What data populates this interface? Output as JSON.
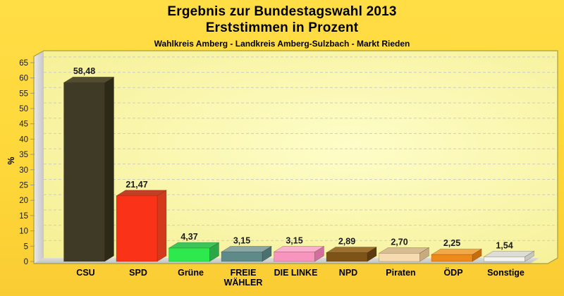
{
  "page": {
    "background_top": "#FFDD45",
    "background_bottom": "#F9CC33"
  },
  "header": {
    "title_line1": "Ergebnis zur Bundestagswahl 2013",
    "title_line2": "Erststimmen in Prozent",
    "subtitle": "Wahlkreis Amberg - Landkreis Amberg-Sulzbach - Markt Rieden"
  },
  "chart_data": {
    "type": "bar",
    "style": "3d-column",
    "title": "Ergebnis zur Bundestagswahl 2013",
    "subtitle2": "Erststimmen in Prozent",
    "subtitle3": "Wahlkreis Amberg - Landkreis Amberg-Sulzbach - Markt Rieden",
    "ylabel": "%",
    "ylim": [
      0,
      65
    ],
    "yticks": [
      0,
      5,
      10,
      15,
      20,
      25,
      30,
      35,
      40,
      45,
      50,
      55,
      60,
      65
    ],
    "grid": "dashed-horizontal",
    "legend": "none",
    "categories": [
      "CSU",
      "SPD",
      "Grüne",
      "FREIE WÄHLER",
      "DIE LINKE",
      "NPD",
      "Piraten",
      "ÖDP",
      "Sonstige"
    ],
    "category_lines": [
      [
        "CSU"
      ],
      [
        "SPD"
      ],
      [
        "Grüne"
      ],
      [
        "FREIE",
        "WÄHLER"
      ],
      [
        "DIE LINKE"
      ],
      [
        "NPD"
      ],
      [
        "Piraten"
      ],
      [
        "ÖDP"
      ],
      [
        "Sonstige"
      ]
    ],
    "values": [
      58.48,
      21.47,
      4.37,
      3.15,
      3.15,
      2.89,
      2.7,
      2.25,
      1.54
    ],
    "value_labels": [
      "58,48",
      "21,47",
      "4,37",
      "3,15",
      "3,15",
      "2,89",
      "2,70",
      "2,25",
      "1,54"
    ],
    "bar_colors": [
      {
        "front": "#3E3A26",
        "top": "#524C30",
        "side": "#2C2917"
      },
      {
        "front": "#FA3318",
        "top": "#C03F26",
        "side": "#D2391D"
      },
      {
        "front": "#2EE94E",
        "top": "#3EC55A",
        "side": "#2AA746"
      },
      {
        "front": "#5E8A89",
        "top": "#8CA7A3",
        "side": "#4A706F"
      },
      {
        "front": "#F795BF",
        "top": "#F9B1CD",
        "side": "#D2709D"
      },
      {
        "front": "#7E5318",
        "top": "#9D712D",
        "side": "#5C3B10"
      },
      {
        "front": "#F6DBB1",
        "top": "#D9BD92",
        "side": "#C9AB80"
      },
      {
        "front": "#EE8A1A",
        "top": "#F2A847",
        "side": "#C66D0E"
      },
      {
        "front": "#F3F3F1",
        "top": "#DDDDD7",
        "side": "#C7C7C1"
      }
    ],
    "colors": {
      "plot_bg_center": "#FEFDC8",
      "plot_bg_edge": "#F4EE8E",
      "gridline": "#CDCDC2",
      "wall_light": "#EAEAEA",
      "wall_dark": "#C6C6C6",
      "floor_light": "#DCDCD8",
      "floor_dark": "#C2C2BE",
      "frame": "#A89E3C",
      "tick_mark": "#98988C",
      "tick_text": "#1A1A1A",
      "value_text": "#1B1B1B",
      "category_text": "#000000"
    }
  }
}
